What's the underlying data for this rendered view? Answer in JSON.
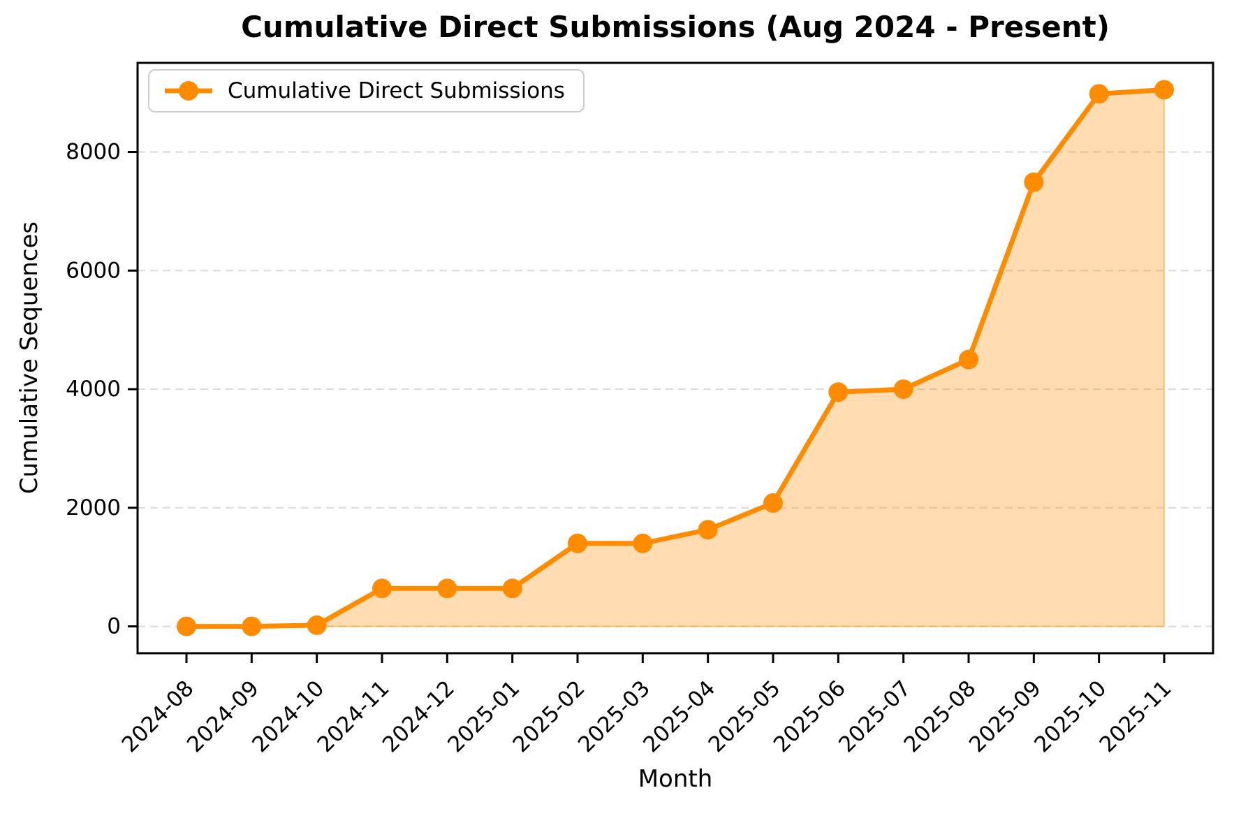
{
  "chart_data": {
    "type": "area",
    "title": "Cumulative Direct Submissions (Aug 2024 - Present)",
    "xlabel": "Month",
    "ylabel": "Cumulative Sequences",
    "legend": [
      "Cumulative Direct Submissions"
    ],
    "legend_position": "upper left",
    "grid": "horizontal dashed",
    "categories": [
      "2024-08",
      "2024-09",
      "2024-10",
      "2024-11",
      "2024-12",
      "2025-01",
      "2025-02",
      "2025-03",
      "2025-04",
      "2025-05",
      "2025-06",
      "2025-07",
      "2025-08",
      "2025-09",
      "2025-10",
      "2025-11"
    ],
    "series": [
      {
        "name": "Cumulative Direct Submissions",
        "values": [
          0,
          0,
          20,
          640,
          640,
          640,
          1400,
          1400,
          1630,
          2080,
          3950,
          4000,
          4500,
          7490,
          8980,
          9050
        ]
      }
    ],
    "yticks": [
      0,
      2000,
      4000,
      6000,
      8000
    ],
    "xlim": [
      -0.75,
      15.75
    ],
    "ylim": [
      -452.5,
      9502.5
    ],
    "colors": {
      "line": "#FF8C00",
      "fill": "rgba(255,140,0,0.30)",
      "fill_edge": "rgba(255,140,0,0.45)",
      "grid": "#DCDCDC",
      "axis": "#000000",
      "legend_border": "#CCCCCC"
    }
  }
}
